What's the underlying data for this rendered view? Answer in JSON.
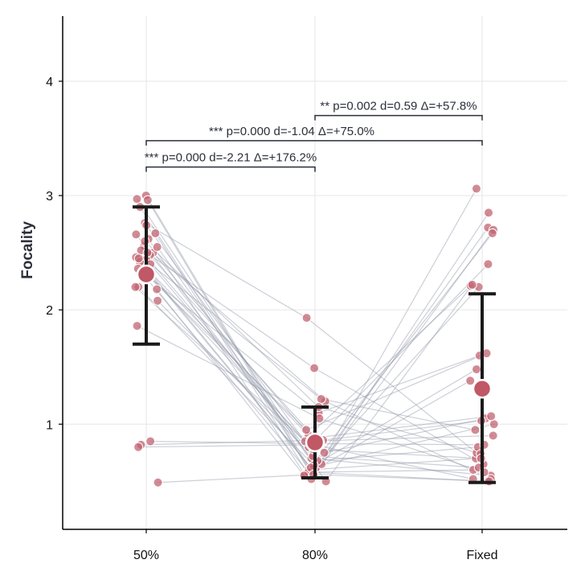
{
  "chart_data": {
    "type": "scatter",
    "subtype": "paired-points-with-mean-sd",
    "title": "",
    "xlabel": "",
    "ylabel": "Focality",
    "categories": [
      "50%",
      "80%",
      "Fixed"
    ],
    "ylim": [
      0.08,
      4.57
    ],
    "yticks": [
      1,
      2,
      3,
      4
    ],
    "grid": true,
    "colors": {
      "points": "#c26472",
      "mean": "#c05866",
      "lines": "#8e94a6",
      "errorbar": "#1a1a1a",
      "bracket": "#2b2f3a"
    },
    "subjects": {
      "50%": [
        3.0,
        2.96,
        2.97,
        2.9,
        2.76,
        2.74,
        2.66,
        2.67,
        2.62,
        2.56,
        2.52,
        2.5,
        2.48,
        2.46,
        2.44,
        2.42,
        2.4,
        2.36,
        2.3,
        2.28,
        2.2,
        2.2,
        2.18,
        2.08,
        1.86,
        2.6,
        2.55,
        2.45,
        2.35,
        2.5,
        0.85,
        0.82,
        0.8,
        0.49
      ],
      "80%": [
        0.55,
        0.6,
        0.62,
        0.58,
        1.93,
        0.65,
        0.7,
        0.52,
        0.56,
        1.2,
        0.8,
        0.75,
        1.49,
        0.9,
        0.68,
        0.6,
        1.22,
        1.1,
        0.95,
        0.58,
        0.64,
        0.85,
        0.55,
        0.72,
        1.05,
        1.15,
        0.5,
        0.62,
        0.78,
        0.88,
        0.83,
        0.86,
        0.82,
        0.56
      ],
      "Fixed": [
        3.06,
        0.7,
        2.72,
        0.6,
        0.75,
        2.85,
        0.55,
        2.7,
        2.67,
        0.52,
        2.4,
        1.05,
        0.65,
        2.21,
        0.8,
        2.2,
        0.95,
        1.6,
        1.62,
        0.5,
        1.48,
        0.9,
        1.38,
        0.62,
        0.58,
        0.74,
        2.22,
        1.0,
        0.7,
        1.07,
        0.82,
        1.03,
        0.52,
        0.5
      ]
    },
    "summary": [
      {
        "category": "50%",
        "mean": 2.31,
        "sd_low": 1.7,
        "sd_high": 2.9
      },
      {
        "category": "80%",
        "mean": 0.84,
        "sd_low": 0.53,
        "sd_high": 1.15
      },
      {
        "category": "Fixed",
        "mean": 1.31,
        "sd_low": 0.49,
        "sd_high": 2.14
      }
    ],
    "comparisons": [
      {
        "from": "50%",
        "to": "80%",
        "stars": "***",
        "text": "p=0.000  d=-2.21  Δ=+176.2%",
        "y": 3.25
      },
      {
        "from": "50%",
        "to": "Fixed",
        "stars": "***",
        "text": "p=0.000  d=-1.04  Δ=+75.0%",
        "y": 3.48
      },
      {
        "from": "80%",
        "to": "Fixed",
        "stars": "**",
        "text": "p=0.002  d=0.59  Δ=+57.8%",
        "y": 3.7
      }
    ]
  }
}
